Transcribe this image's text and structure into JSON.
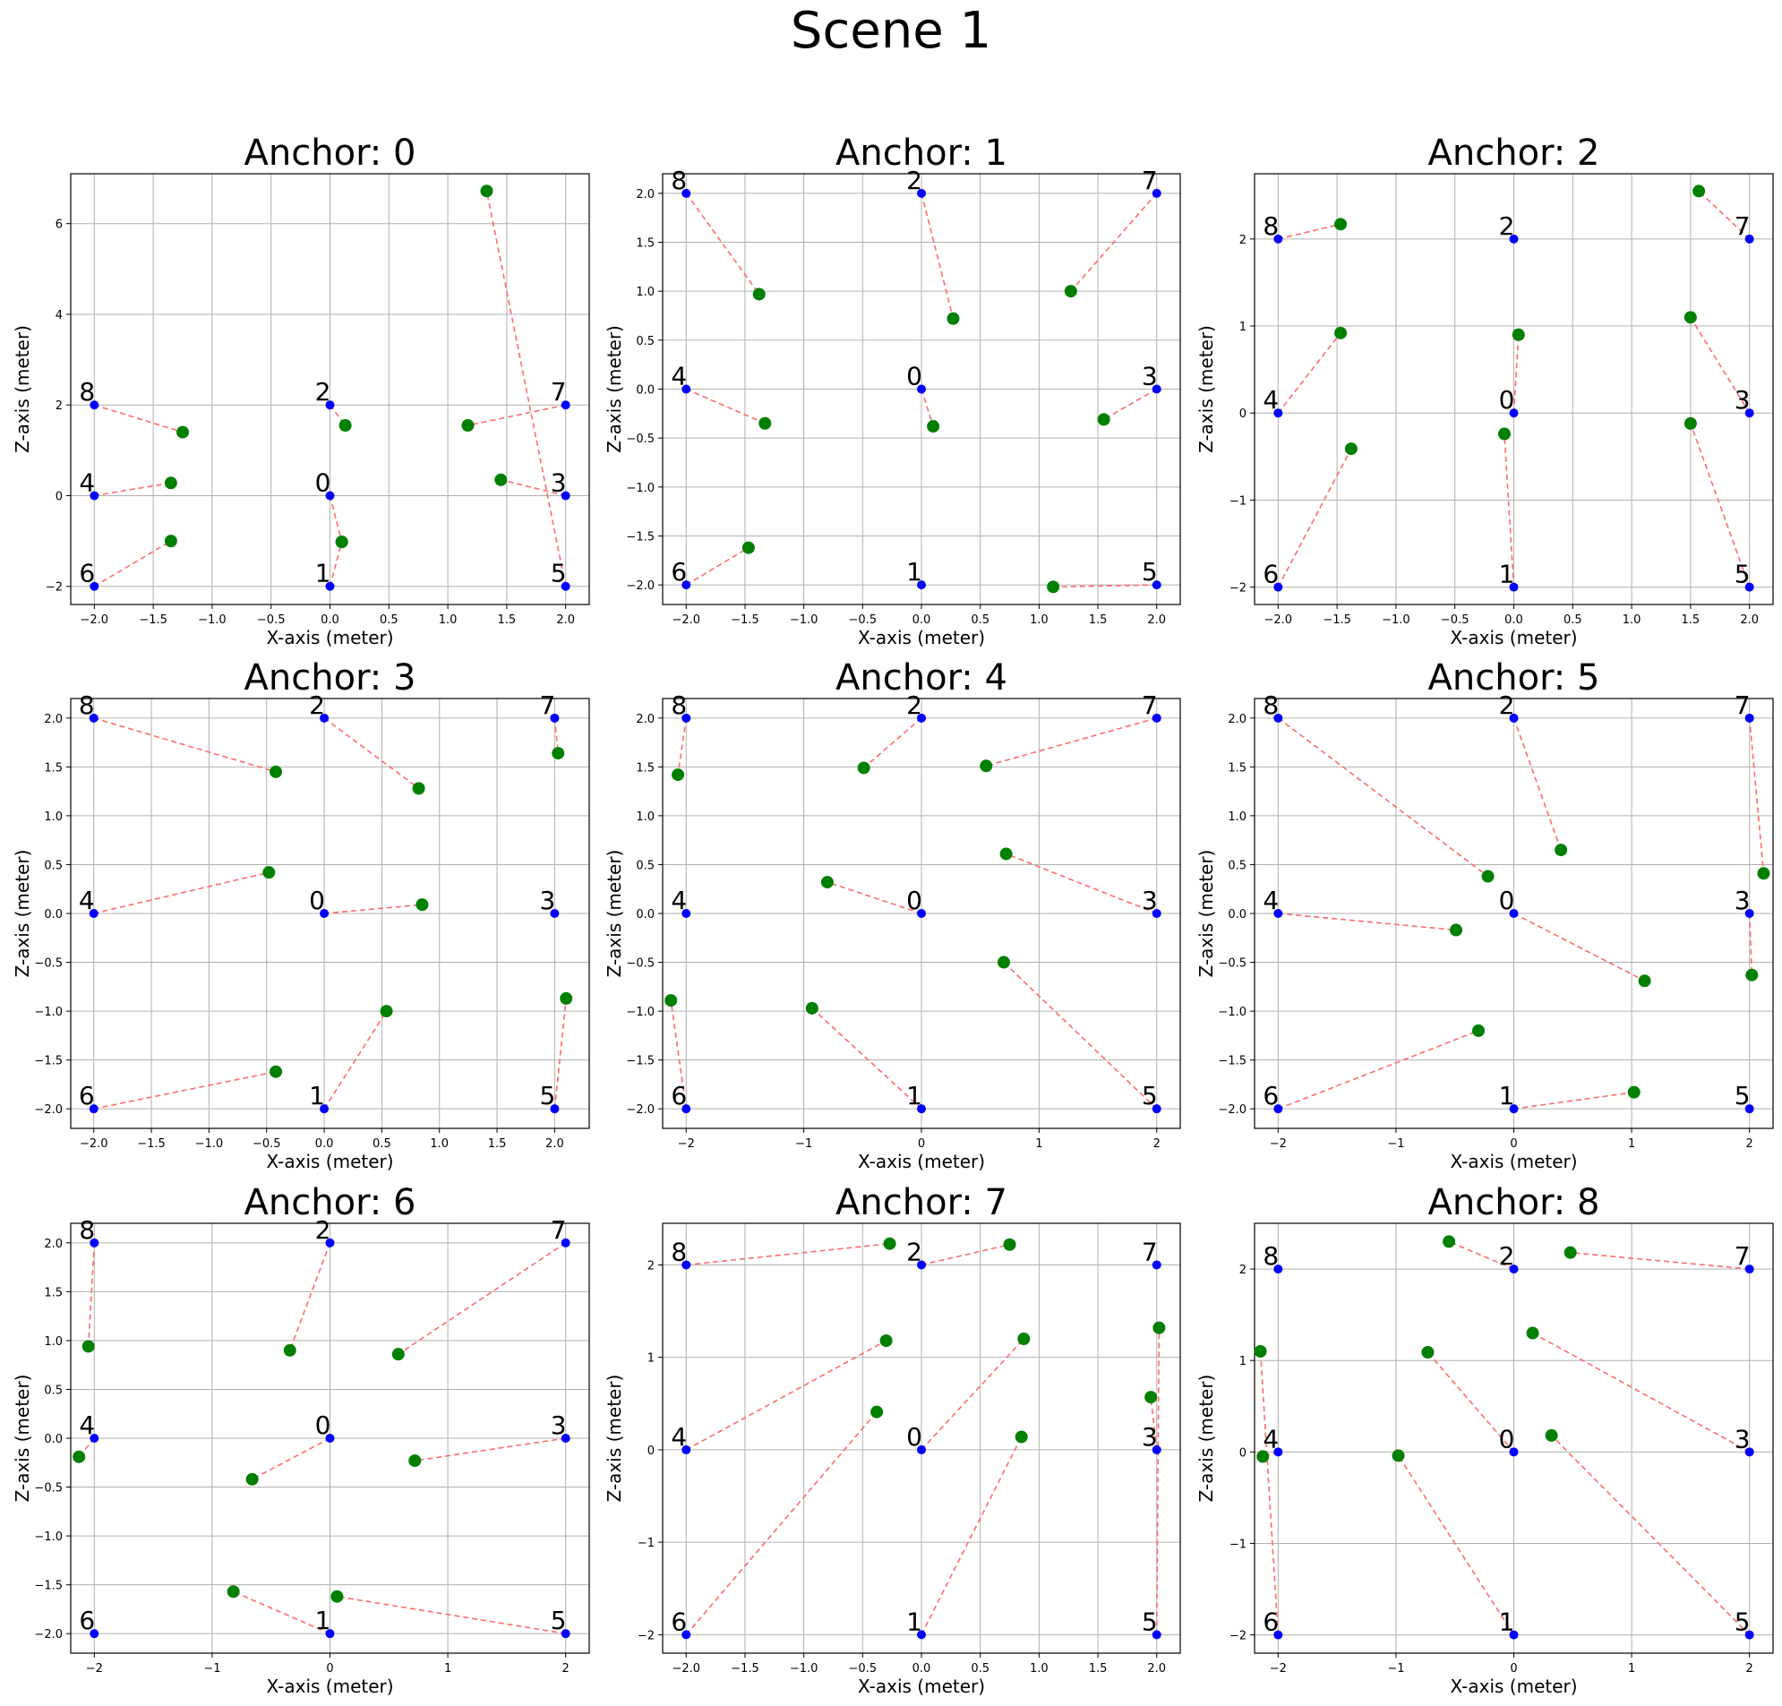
{
  "title": "Scene 1",
  "colors": {
    "anchor": "#0000ff",
    "estimate": "#008000",
    "link": "#ff6b6b",
    "grid": "#b0b0b0"
  },
  "chart_data": [
    {
      "type": "scatter",
      "title": "Anchor: 0",
      "xlabel": "X-axis (meter)",
      "ylabel": "Z-axis (meter)",
      "xlim": [
        -2.2,
        2.2
      ],
      "ylim": [
        -2.4,
        7.1
      ],
      "xticks": [
        -2.0,
        -1.5,
        -1.0,
        -0.5,
        0.0,
        0.5,
        1.0,
        1.5,
        2.0
      ],
      "yticks": [
        -2,
        0,
        2,
        4,
        6
      ],
      "anchors": [
        {
          "id": "0",
          "x": 0,
          "z": 0
        },
        {
          "id": "1",
          "x": 0,
          "z": -2
        },
        {
          "id": "2",
          "x": 0,
          "z": 2
        },
        {
          "id": "3",
          "x": 2,
          "z": 0
        },
        {
          "id": "4",
          "x": -2,
          "z": 0
        },
        {
          "id": "5",
          "x": 2,
          "z": -2
        },
        {
          "id": "6",
          "x": -2,
          "z": -2
        },
        {
          "id": "7",
          "x": 2,
          "z": 2
        },
        {
          "id": "8",
          "x": -2,
          "z": 2
        }
      ],
      "estimates": [
        {
          "id": "0",
          "x": 0.1,
          "z": -1.02
        },
        {
          "id": "1",
          "x": 0.1,
          "z": -1.02
        },
        {
          "id": "2",
          "x": 0.13,
          "z": 1.55
        },
        {
          "id": "3",
          "x": 1.45,
          "z": 0.35
        },
        {
          "id": "4",
          "x": -1.35,
          "z": 0.28
        },
        {
          "id": "5",
          "x": 1.33,
          "z": 6.72
        },
        {
          "id": "6",
          "x": -1.35,
          "z": -1.0
        },
        {
          "id": "7",
          "x": 1.17,
          "z": 1.55
        },
        {
          "id": "8",
          "x": -1.25,
          "z": 1.4
        }
      ]
    },
    {
      "type": "scatter",
      "title": "Anchor: 1",
      "xlabel": "X-axis (meter)",
      "ylabel": "Z-axis (meter)",
      "xlim": [
        -2.2,
        2.2
      ],
      "ylim": [
        -2.2,
        2.2
      ],
      "xticks": [
        -2.0,
        -1.5,
        -1.0,
        -0.5,
        0.0,
        0.5,
        1.0,
        1.5,
        2.0
      ],
      "yticks": [
        -2.0,
        -1.5,
        -1.0,
        -0.5,
        0.0,
        0.5,
        1.0,
        1.5,
        2.0
      ],
      "anchors": [
        {
          "id": "0",
          "x": 0,
          "z": 0
        },
        {
          "id": "1",
          "x": 0,
          "z": -2
        },
        {
          "id": "2",
          "x": 0,
          "z": 2
        },
        {
          "id": "3",
          "x": 2,
          "z": 0
        },
        {
          "id": "4",
          "x": -2,
          "z": 0
        },
        {
          "id": "5",
          "x": 2,
          "z": -2
        },
        {
          "id": "6",
          "x": -2,
          "z": -2
        },
        {
          "id": "7",
          "x": 2,
          "z": 2
        },
        {
          "id": "8",
          "x": -2,
          "z": 2
        }
      ],
      "estimates": [
        {
          "id": "0",
          "x": 0.1,
          "z": -0.38
        },
        {
          "id": "2",
          "x": 0.27,
          "z": 0.72
        },
        {
          "id": "3",
          "x": 1.55,
          "z": -0.31
        },
        {
          "id": "4",
          "x": -1.33,
          "z": -0.35
        },
        {
          "id": "5",
          "x": 1.12,
          "z": -2.02
        },
        {
          "id": "6",
          "x": -1.47,
          "z": -1.62
        },
        {
          "id": "7",
          "x": 1.27,
          "z": 1.0
        },
        {
          "id": "8",
          "x": -1.38,
          "z": 0.97
        }
      ]
    },
    {
      "type": "scatter",
      "title": "Anchor: 2",
      "xlabel": "X-axis (meter)",
      "ylabel": "Z-axis (meter)",
      "xlim": [
        -2.2,
        2.2
      ],
      "ylim": [
        -2.2,
        2.75
      ],
      "xticks": [
        -2.0,
        -1.5,
        -1.0,
        -0.5,
        0.0,
        0.5,
        1.0,
        1.5,
        2.0
      ],
      "yticks": [
        -2,
        -1,
        0,
        1,
        2
      ],
      "anchors": [
        {
          "id": "0",
          "x": 0,
          "z": 0
        },
        {
          "id": "1",
          "x": 0,
          "z": -2
        },
        {
          "id": "2",
          "x": 0,
          "z": 2
        },
        {
          "id": "3",
          "x": 2,
          "z": 0
        },
        {
          "id": "4",
          "x": -2,
          "z": 0
        },
        {
          "id": "5",
          "x": 2,
          "z": -2
        },
        {
          "id": "6",
          "x": -2,
          "z": -2
        },
        {
          "id": "7",
          "x": 2,
          "z": 2
        },
        {
          "id": "8",
          "x": -2,
          "z": 2
        }
      ],
      "estimates": [
        {
          "id": "0",
          "x": 0.04,
          "z": 0.9
        },
        {
          "id": "1",
          "x": -0.08,
          "z": -0.24
        },
        {
          "id": "3",
          "x": 1.5,
          "z": 1.1
        },
        {
          "id": "4",
          "x": -1.47,
          "z": 0.92
        },
        {
          "id": "5",
          "x": 1.5,
          "z": -0.12
        },
        {
          "id": "6",
          "x": -1.38,
          "z": -0.41
        },
        {
          "id": "7",
          "x": 1.57,
          "z": 2.55
        },
        {
          "id": "8",
          "x": -1.47,
          "z": 2.17
        }
      ]
    },
    {
      "type": "scatter",
      "title": "Anchor: 3",
      "xlabel": "X-axis (meter)",
      "ylabel": "Z-axis (meter)",
      "xlim": [
        -2.2,
        2.3
      ],
      "ylim": [
        -2.2,
        2.2
      ],
      "xticks": [
        -2.0,
        -1.5,
        -1.0,
        -0.5,
        0.0,
        0.5,
        1.0,
        1.5,
        2.0
      ],
      "yticks": [
        -2.0,
        -1.5,
        -1.0,
        -0.5,
        0.0,
        0.5,
        1.0,
        1.5,
        2.0
      ],
      "anchors": [
        {
          "id": "0",
          "x": 0,
          "z": 0
        },
        {
          "id": "1",
          "x": 0,
          "z": -2
        },
        {
          "id": "2",
          "x": 0,
          "z": 2
        },
        {
          "id": "3",
          "x": 2,
          "z": 0
        },
        {
          "id": "4",
          "x": -2,
          "z": 0
        },
        {
          "id": "5",
          "x": 2,
          "z": -2
        },
        {
          "id": "6",
          "x": -2,
          "z": -2
        },
        {
          "id": "7",
          "x": 2,
          "z": 2
        },
        {
          "id": "8",
          "x": -2,
          "z": 2
        }
      ],
      "estimates": [
        {
          "id": "0",
          "x": 0.85,
          "z": 0.09
        },
        {
          "id": "1",
          "x": 0.54,
          "z": -1.0
        },
        {
          "id": "2",
          "x": 0.82,
          "z": 1.28
        },
        {
          "id": "4",
          "x": -0.48,
          "z": 0.42
        },
        {
          "id": "5",
          "x": 2.1,
          "z": -0.87
        },
        {
          "id": "6",
          "x": -0.42,
          "z": -1.62
        },
        {
          "id": "7",
          "x": 2.03,
          "z": 1.64
        },
        {
          "id": "8",
          "x": -0.42,
          "z": 1.45
        }
      ]
    },
    {
      "type": "scatter",
      "title": "Anchor: 4",
      "xlabel": "X-axis (meter)",
      "ylabel": "Z-axis (meter)",
      "xlim": [
        -2.2,
        2.2
      ],
      "ylim": [
        -2.2,
        2.2
      ],
      "xticks": [
        -2,
        -1,
        0,
        1,
        2
      ],
      "yticks": [
        -2.0,
        -1.5,
        -1.0,
        -0.5,
        0.0,
        0.5,
        1.0,
        1.5,
        2.0
      ],
      "anchors": [
        {
          "id": "0",
          "x": 0,
          "z": 0
        },
        {
          "id": "1",
          "x": 0,
          "z": -2
        },
        {
          "id": "2",
          "x": 0,
          "z": 2
        },
        {
          "id": "3",
          "x": 2,
          "z": 0
        },
        {
          "id": "4",
          "x": -2,
          "z": 0
        },
        {
          "id": "5",
          "x": 2,
          "z": -2
        },
        {
          "id": "6",
          "x": -2,
          "z": -2
        },
        {
          "id": "7",
          "x": 2,
          "z": 2
        },
        {
          "id": "8",
          "x": -2,
          "z": 2
        }
      ],
      "estimates": [
        {
          "id": "0",
          "x": -0.8,
          "z": 0.32
        },
        {
          "id": "1",
          "x": -0.93,
          "z": -0.97
        },
        {
          "id": "2",
          "x": -0.49,
          "z": 1.49
        },
        {
          "id": "3",
          "x": 0.72,
          "z": 0.61
        },
        {
          "id": "5",
          "x": 0.7,
          "z": -0.5
        },
        {
          "id": "6",
          "x": -2.13,
          "z": -0.89
        },
        {
          "id": "7",
          "x": 0.55,
          "z": 1.51
        },
        {
          "id": "8",
          "x": -2.07,
          "z": 1.42
        }
      ]
    },
    {
      "type": "scatter",
      "title": "Anchor: 5",
      "xlabel": "X-axis (meter)",
      "ylabel": "Z-axis (meter)",
      "xlim": [
        -2.2,
        2.2
      ],
      "ylim": [
        -2.2,
        2.2
      ],
      "xticks": [
        -2,
        -1,
        0,
        1,
        2
      ],
      "yticks": [
        -2.0,
        -1.5,
        -1.0,
        -0.5,
        0.0,
        0.5,
        1.0,
        1.5,
        2.0
      ],
      "anchors": [
        {
          "id": "0",
          "x": 0,
          "z": 0
        },
        {
          "id": "1",
          "x": 0,
          "z": -2
        },
        {
          "id": "2",
          "x": 0,
          "z": 2
        },
        {
          "id": "3",
          "x": 2,
          "z": 0
        },
        {
          "id": "4",
          "x": -2,
          "z": 0
        },
        {
          "id": "5",
          "x": 2,
          "z": -2
        },
        {
          "id": "6",
          "x": -2,
          "z": -2
        },
        {
          "id": "7",
          "x": 2,
          "z": 2
        },
        {
          "id": "8",
          "x": -2,
          "z": 2
        }
      ],
      "estimates": [
        {
          "id": "0",
          "x": 1.11,
          "z": -0.69
        },
        {
          "id": "1",
          "x": 1.02,
          "z": -1.83
        },
        {
          "id": "2",
          "x": 0.4,
          "z": 0.65
        },
        {
          "id": "3",
          "x": 2.02,
          "z": -0.63
        },
        {
          "id": "4",
          "x": -0.49,
          "z": -0.17
        },
        {
          "id": "6",
          "x": -0.3,
          "z": -1.2
        },
        {
          "id": "7",
          "x": 2.12,
          "z": 0.41
        },
        {
          "id": "8",
          "x": -0.22,
          "z": 0.38
        }
      ]
    },
    {
      "type": "scatter",
      "title": "Anchor: 6",
      "xlabel": "X-axis (meter)",
      "ylabel": "Z-axis (meter)",
      "xlim": [
        -2.2,
        2.2
      ],
      "ylim": [
        -2.2,
        2.2
      ],
      "xticks": [
        -2,
        -1,
        0,
        1,
        2
      ],
      "yticks": [
        -2.0,
        -1.5,
        -1.0,
        -0.5,
        0.0,
        0.5,
        1.0,
        1.5,
        2.0
      ],
      "anchors": [
        {
          "id": "0",
          "x": 0,
          "z": 0
        },
        {
          "id": "1",
          "x": 0,
          "z": -2
        },
        {
          "id": "2",
          "x": 0,
          "z": 2
        },
        {
          "id": "3",
          "x": 2,
          "z": 0
        },
        {
          "id": "4",
          "x": -2,
          "z": 0
        },
        {
          "id": "5",
          "x": 2,
          "z": -2
        },
        {
          "id": "6",
          "x": -2,
          "z": -2
        },
        {
          "id": "7",
          "x": 2,
          "z": 2
        },
        {
          "id": "8",
          "x": -2,
          "z": 2
        }
      ],
      "estimates": [
        {
          "id": "0",
          "x": -0.66,
          "z": -0.42
        },
        {
          "id": "1",
          "x": -0.82,
          "z": -1.57
        },
        {
          "id": "2",
          "x": -0.34,
          "z": 0.9
        },
        {
          "id": "3",
          "x": 0.72,
          "z": -0.23
        },
        {
          "id": "4",
          "x": -2.13,
          "z": -0.19
        },
        {
          "id": "5",
          "x": 0.06,
          "z": -1.62
        },
        {
          "id": "7",
          "x": 0.58,
          "z": 0.86
        },
        {
          "id": "8",
          "x": -2.05,
          "z": 0.94
        }
      ]
    },
    {
      "type": "scatter",
      "title": "Anchor: 7",
      "xlabel": "X-axis (meter)",
      "ylabel": "Z-axis (meter)",
      "xlim": [
        -2.2,
        2.2
      ],
      "ylim": [
        -2.2,
        2.45
      ],
      "xticks": [
        -2.0,
        -1.5,
        -1.0,
        -0.5,
        0.0,
        0.5,
        1.0,
        1.5,
        2.0
      ],
      "yticks": [
        -2,
        -1,
        0,
        1,
        2
      ],
      "anchors": [
        {
          "id": "0",
          "x": 0,
          "z": 0
        },
        {
          "id": "1",
          "x": 0,
          "z": -2
        },
        {
          "id": "2",
          "x": 0,
          "z": 2
        },
        {
          "id": "3",
          "x": 2,
          "z": 0
        },
        {
          "id": "4",
          "x": -2,
          "z": 0
        },
        {
          "id": "5",
          "x": 2,
          "z": -2
        },
        {
          "id": "6",
          "x": -2,
          "z": -2
        },
        {
          "id": "7",
          "x": 2,
          "z": 2
        },
        {
          "id": "8",
          "x": -2,
          "z": 2
        }
      ],
      "estimates": [
        {
          "id": "0",
          "x": 0.87,
          "z": 1.2
        },
        {
          "id": "1",
          "x": 0.85,
          "z": 0.14
        },
        {
          "id": "2",
          "x": 0.75,
          "z": 2.22
        },
        {
          "id": "3",
          "x": 1.95,
          "z": 0.57
        },
        {
          "id": "4",
          "x": -0.3,
          "z": 1.18
        },
        {
          "id": "5",
          "x": 2.02,
          "z": 1.32
        },
        {
          "id": "6",
          "x": -0.38,
          "z": 0.41
        },
        {
          "id": "8",
          "x": -0.27,
          "z": 2.23
        }
      ]
    },
    {
      "type": "scatter",
      "title": "Anchor: 8",
      "xlabel": "X-axis (meter)",
      "ylabel": "Z-axis (meter)",
      "xlim": [
        -2.2,
        2.2
      ],
      "ylim": [
        -2.2,
        2.5
      ],
      "xticks": [
        -2,
        -1,
        0,
        1,
        2
      ],
      "yticks": [
        -2,
        -1,
        0,
        1,
        2
      ],
      "anchors": [
        {
          "id": "0",
          "x": 0,
          "z": 0
        },
        {
          "id": "1",
          "x": 0,
          "z": -2
        },
        {
          "id": "2",
          "x": 0,
          "z": 2
        },
        {
          "id": "3",
          "x": 2,
          "z": 0
        },
        {
          "id": "4",
          "x": -2,
          "z": 0
        },
        {
          "id": "5",
          "x": 2,
          "z": -2
        },
        {
          "id": "6",
          "x": -2,
          "z": -2
        },
        {
          "id": "7",
          "x": 2,
          "z": 2
        },
        {
          "id": "8",
          "x": -2,
          "z": 2
        }
      ],
      "estimates": [
        {
          "id": "0",
          "x": -0.73,
          "z": 1.09
        },
        {
          "id": "1",
          "x": -0.98,
          "z": -0.04
        },
        {
          "id": "2",
          "x": -0.55,
          "z": 2.3
        },
        {
          "id": "3",
          "x": 0.16,
          "z": 1.3
        },
        {
          "id": "4",
          "x": -2.13,
          "z": -0.05
        },
        {
          "id": "5",
          "x": 0.32,
          "z": 0.18
        },
        {
          "id": "6",
          "x": -2.15,
          "z": 1.1
        },
        {
          "id": "7",
          "x": 0.48,
          "z": 2.18
        }
      ]
    }
  ]
}
